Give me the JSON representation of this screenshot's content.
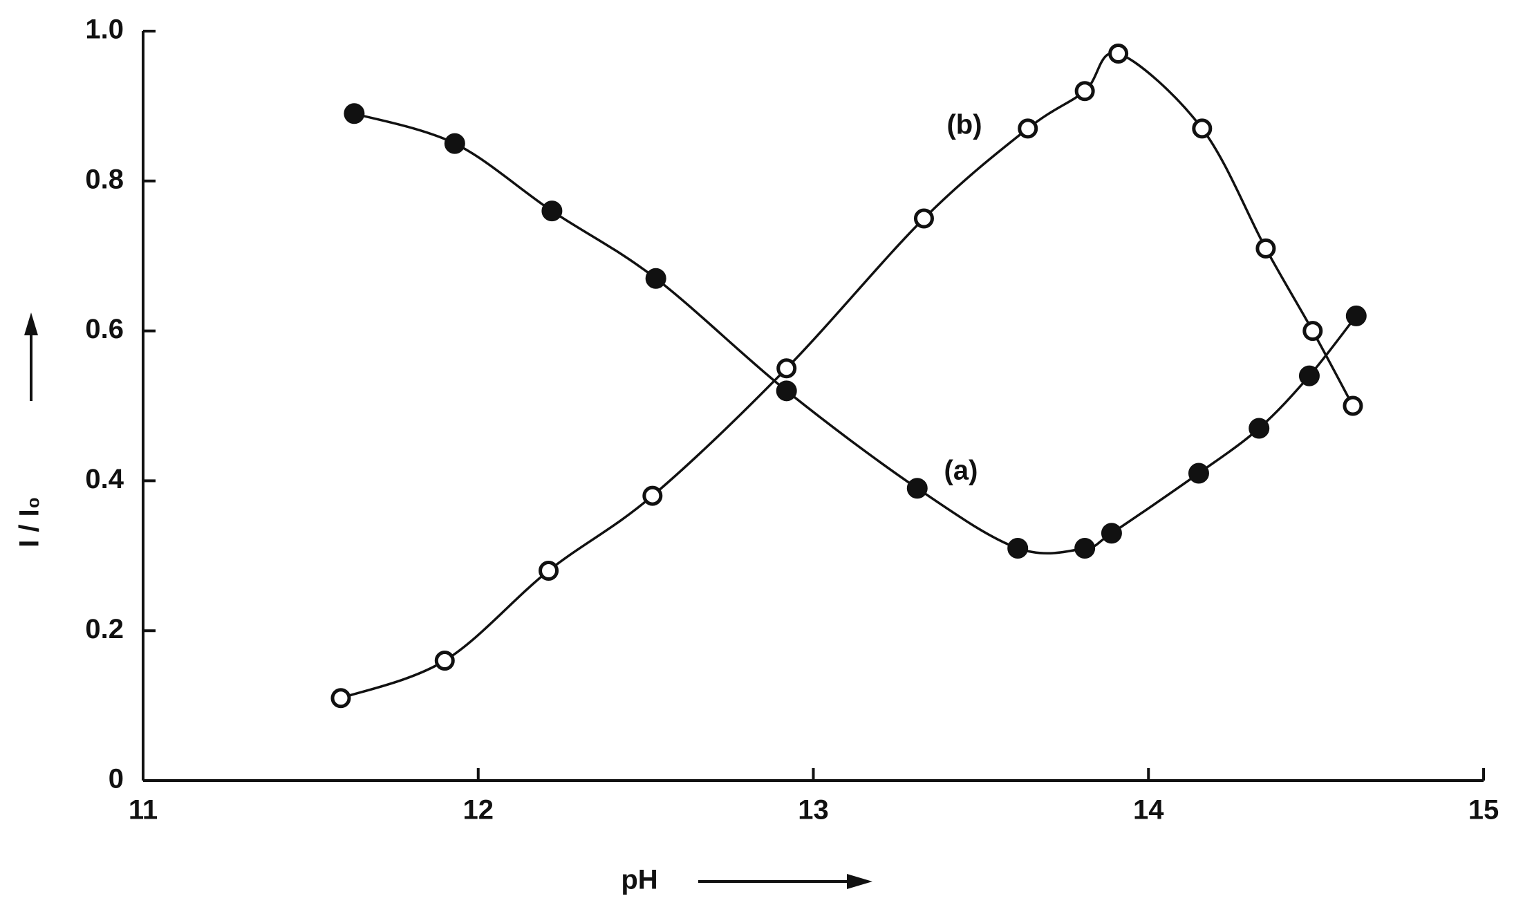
{
  "chart_data": {
    "type": "scatter",
    "x_label": "pH",
    "y_label": "I / I₀",
    "xlim": [
      11,
      15
    ],
    "xticks": [
      11,
      12,
      13,
      14,
      15
    ],
    "ylim": [
      0,
      1
    ],
    "yticks": [
      0,
      0.2,
      0.4,
      0.6,
      0.8,
      {
        "value": 1,
        "label": "1.0"
      }
    ],
    "series": [
      {
        "name": "(a)",
        "marker": "filled",
        "color": "#111111",
        "x": [
          11.63,
          11.93,
          12.22,
          12.53,
          12.92,
          13.31,
          13.61,
          13.81,
          13.89,
          14.15,
          14.33,
          14.48,
          14.62
        ],
        "values": [
          0.89,
          0.85,
          0.76,
          0.67,
          0.52,
          0.39,
          0.31,
          0.31,
          0.33,
          0.41,
          0.47,
          0.54,
          0.62
        ]
      },
      {
        "name": "(b)",
        "marker": "open",
        "color": "#111111",
        "x": [
          11.59,
          11.9,
          12.21,
          12.52,
          12.92,
          13.33,
          13.64,
          13.81,
          13.91,
          14.16,
          14.35,
          14.49,
          14.61
        ],
        "values": [
          0.11,
          0.16,
          0.28,
          0.38,
          0.55,
          0.75,
          0.87,
          0.92,
          0.97,
          0.87,
          0.71,
          0.6,
          0.5
        ]
      }
    ]
  }
}
